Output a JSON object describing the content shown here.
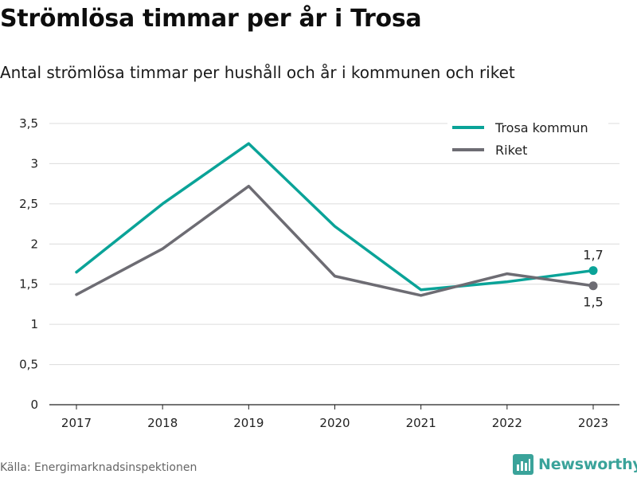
{
  "title": "Strömlösa timmar per år i Trosa",
  "subtitle": "Antal strömlösa timmar per hushåll och år i kommunen och riket",
  "source": "Källa: Energimarknadsinspektionen",
  "brand": {
    "name": "Newsworthy",
    "icon": "newsworthy-logo-icon",
    "color": "#3aa39a"
  },
  "chart_data": {
    "type": "line",
    "x": [
      "2017",
      "2018",
      "2019",
      "2020",
      "2021",
      "2022",
      "2023"
    ],
    "ylim": [
      0,
      3.5
    ],
    "yticks": [
      0,
      0.5,
      1,
      1.5,
      2,
      2.5,
      3,
      3.5
    ],
    "ytick_labels": [
      "0",
      "0,5",
      "1",
      "1,5",
      "2",
      "2,5",
      "3",
      "3,5"
    ],
    "grid": true,
    "legend_position": "top-right",
    "series": [
      {
        "name": "Trosa kommun",
        "color": "#0aa398",
        "values": [
          1.65,
          2.5,
          3.25,
          2.22,
          1.43,
          1.53,
          1.67
        ],
        "end_label": "1,7"
      },
      {
        "name": "Riket",
        "color": "#6d6c73",
        "values": [
          1.37,
          1.94,
          2.72,
          1.6,
          1.36,
          1.63,
          1.48
        ],
        "end_label": "1,5"
      }
    ]
  }
}
